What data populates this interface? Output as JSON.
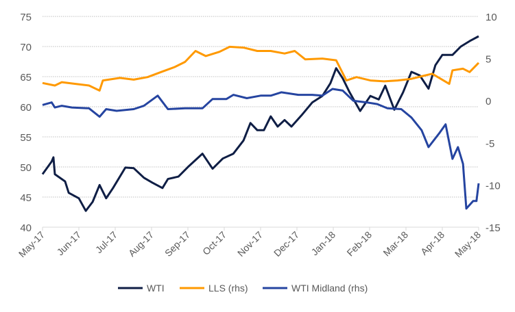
{
  "chart_data": {
    "type": "line",
    "title": "",
    "x_unit": "months since May-17",
    "x_tick_labels": [
      "May-17",
      "Jun-17",
      "Jul-17",
      "Aug-17",
      "Sep-17",
      "Oct-17",
      "Nov-17",
      "Dec-17",
      "Jan-18",
      "Feb-18",
      "Mar-18",
      "Apr-18",
      "May-18"
    ],
    "y_left": {
      "ticks": [
        "40",
        "45",
        "50",
        "55",
        "60",
        "65",
        "70",
        "75"
      ],
      "range": [
        40,
        75
      ]
    },
    "y_right": {
      "ticks": [
        "-15",
        "-10",
        "-5",
        "0",
        "5",
        "10"
      ],
      "range": [
        -15,
        10
      ]
    },
    "grid": true,
    "legend_position": "bottom",
    "series": [
      {
        "name": "WTI",
        "axis": "left",
        "color": "#0f1e45",
        "points": [
          [
            0,
            48.8
          ],
          [
            0.25,
            50.9
          ],
          [
            0.3,
            51.6
          ],
          [
            0.34,
            48.8
          ],
          [
            0.62,
            47.6
          ],
          [
            0.72,
            45.7
          ],
          [
            1.0,
            44.8
          ],
          [
            1.19,
            42.7
          ],
          [
            1.38,
            44.2
          ],
          [
            1.57,
            47
          ],
          [
            1.75,
            44.8
          ],
          [
            1.94,
            46.5
          ],
          [
            2.28,
            49.9
          ],
          [
            2.51,
            49.8
          ],
          [
            2.79,
            48.2
          ],
          [
            3.02,
            47.4
          ],
          [
            3.3,
            46.5
          ],
          [
            3.45,
            48
          ],
          [
            3.74,
            48.4
          ],
          [
            4.02,
            50.1
          ],
          [
            4.4,
            52.2
          ],
          [
            4.68,
            49.7
          ],
          [
            4.96,
            51.4
          ],
          [
            5.25,
            52.2
          ],
          [
            5.53,
            54.4
          ],
          [
            5.72,
            57.3
          ],
          [
            5.91,
            56.1
          ],
          [
            6.09,
            56.1
          ],
          [
            6.28,
            58.4
          ],
          [
            6.47,
            56.7
          ],
          [
            6.66,
            57.8
          ],
          [
            6.85,
            56.7
          ],
          [
            7.13,
            58.6
          ],
          [
            7.42,
            60.7
          ],
          [
            7.7,
            61.8
          ],
          [
            7.92,
            63.9
          ],
          [
            8.08,
            66.4
          ],
          [
            8.26,
            64.7
          ],
          [
            8.45,
            62.4
          ],
          [
            8.74,
            59.3
          ],
          [
            9.02,
            61.8
          ],
          [
            9.25,
            61.2
          ],
          [
            9.43,
            63.5
          ],
          [
            9.68,
            59.5
          ],
          [
            9.92,
            62.4
          ],
          [
            10.15,
            65.8
          ],
          [
            10.38,
            65.2
          ],
          [
            10.62,
            63
          ],
          [
            10.81,
            66.9
          ],
          [
            11.0,
            68.6
          ],
          [
            11.28,
            68.6
          ],
          [
            11.51,
            70
          ],
          [
            11.75,
            70.9
          ],
          [
            12,
            71.7
          ]
        ]
      },
      {
        "name": "LLS (rhs)",
        "axis": "right",
        "color": "#ff9900",
        "points": [
          [
            0,
            2.1
          ],
          [
            0.34,
            1.8
          ],
          [
            0.53,
            2.2
          ],
          [
            0.91,
            2.0
          ],
          [
            1.28,
            1.8
          ],
          [
            1.57,
            1.2
          ],
          [
            1.66,
            2.4
          ],
          [
            2.13,
            2.7
          ],
          [
            2.51,
            2.5
          ],
          [
            2.89,
            2.8
          ],
          [
            3.26,
            3.4
          ],
          [
            3.64,
            4.0
          ],
          [
            3.92,
            4.6
          ],
          [
            4.21,
            5.9
          ],
          [
            4.49,
            5.3
          ],
          [
            4.87,
            5.8
          ],
          [
            5.15,
            6.4
          ],
          [
            5.53,
            6.3
          ],
          [
            5.91,
            5.9
          ],
          [
            6.28,
            5.9
          ],
          [
            6.66,
            5.6
          ],
          [
            6.94,
            5.9
          ],
          [
            7.23,
            4.9
          ],
          [
            7.7,
            5.0
          ],
          [
            8.08,
            4.8
          ],
          [
            8.36,
            2.4
          ],
          [
            8.64,
            2.8
          ],
          [
            9.02,
            2.4
          ],
          [
            9.4,
            2.3
          ],
          [
            9.77,
            2.4
          ],
          [
            10.15,
            2.6
          ],
          [
            10.43,
            2.9
          ],
          [
            10.72,
            3.2
          ],
          [
            11.19,
            2.0
          ],
          [
            11.28,
            3.6
          ],
          [
            11.57,
            3.8
          ],
          [
            11.75,
            3.4
          ],
          [
            12,
            4.5
          ]
        ]
      },
      {
        "name": "WTI Midland (rhs)",
        "axis": "right",
        "color": "#2544a0",
        "points": [
          [
            0,
            -0.5
          ],
          [
            0.25,
            -0.2
          ],
          [
            0.34,
            -0.8
          ],
          [
            0.53,
            -0.6
          ],
          [
            0.81,
            -0.8
          ],
          [
            1.28,
            -0.9
          ],
          [
            1.57,
            -1.9
          ],
          [
            1.75,
            -1.0
          ],
          [
            2.04,
            -1.2
          ],
          [
            2.51,
            -1.0
          ],
          [
            2.79,
            -0.6
          ],
          [
            3.17,
            0.6
          ],
          [
            3.45,
            -1.0
          ],
          [
            3.92,
            -0.9
          ],
          [
            4.4,
            -0.9
          ],
          [
            4.68,
            0.2
          ],
          [
            5.06,
            0.2
          ],
          [
            5.25,
            0.7
          ],
          [
            5.62,
            0.3
          ],
          [
            6.0,
            0.6
          ],
          [
            6.28,
            0.6
          ],
          [
            6.57,
            1.0
          ],
          [
            7.04,
            0.7
          ],
          [
            7.42,
            0.7
          ],
          [
            7.7,
            0.6
          ],
          [
            7.98,
            1.4
          ],
          [
            8.26,
            1.2
          ],
          [
            8.55,
            0.0
          ],
          [
            8.92,
            -0.2
          ],
          [
            9.21,
            -0.4
          ],
          [
            9.49,
            -0.9
          ],
          [
            9.87,
            -1.0
          ],
          [
            10.15,
            -2.0
          ],
          [
            10.43,
            -3.5
          ],
          [
            10.62,
            -5.5
          ],
          [
            10.91,
            -3.9
          ],
          [
            11.09,
            -2.8
          ],
          [
            11.28,
            -6.9
          ],
          [
            11.43,
            -5.5
          ],
          [
            11.57,
            -7.5
          ],
          [
            11.66,
            -12.8
          ],
          [
            11.85,
            -11.9
          ],
          [
            11.94,
            -11.9
          ],
          [
            12,
            -9.8
          ]
        ]
      }
    ]
  }
}
